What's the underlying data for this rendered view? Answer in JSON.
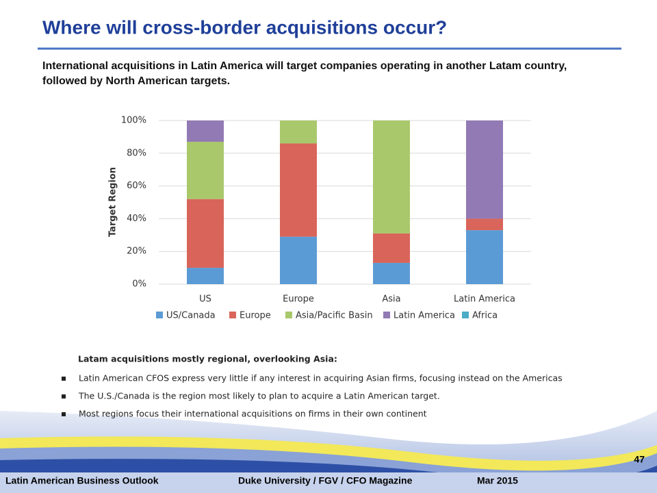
{
  "header": {
    "title": "Where will cross-border acquisitions occur?",
    "subtitle": "International acquisitions in Latin America will target companies operating in another Latam country, followed by North American targets."
  },
  "chart_data": {
    "type": "stacked_bar",
    "ylabel": "Target Region",
    "categories": [
      "US",
      "Europe",
      "Asia",
      "Latin America"
    ],
    "series": [
      {
        "name": "US/Canada",
        "color": "#5b9bd5",
        "values": [
          10,
          29,
          13,
          33
        ]
      },
      {
        "name": "Europe",
        "color": "#d9645a",
        "values": [
          42,
          57,
          18,
          7
        ]
      },
      {
        "name": "Asia/Pacific Basin",
        "color": "#a9c86b",
        "values": [
          35,
          14,
          69,
          0
        ]
      },
      {
        "name": "Latin America",
        "color": "#927ab5",
        "values": [
          13,
          0,
          0,
          60
        ]
      },
      {
        "name": "Africa",
        "color": "#4bacc6",
        "values": [
          0,
          0,
          0,
          0
        ]
      }
    ],
    "ylim": [
      0,
      100
    ],
    "yticks": [
      {
        "value": 0,
        "label": "0%"
      },
      {
        "value": 20,
        "label": "20%"
      },
      {
        "value": 40,
        "label": "40%"
      },
      {
        "value": 60,
        "label": "60%"
      },
      {
        "value": 80,
        "label": "80%"
      },
      {
        "value": 100,
        "label": "100%"
      }
    ],
    "grid": true
  },
  "notes": {
    "heading": "Latam acquisitions mostly regional, overlooking Asia:",
    "bullets": [
      "Latin American CFOS express very little if any interest in acquiring Asian firms, focusing instead on the Americas",
      "The U.S./Canada is the region most likely to plan to acquire a Latin American target.",
      "Most regions focus their international acquisitions on firms in their own continent"
    ]
  },
  "footer": {
    "left": "Latin American Business Outlook",
    "center": "Duke University / FGV / CFO Magazine",
    "date": "Mar 2015",
    "page": "47"
  }
}
